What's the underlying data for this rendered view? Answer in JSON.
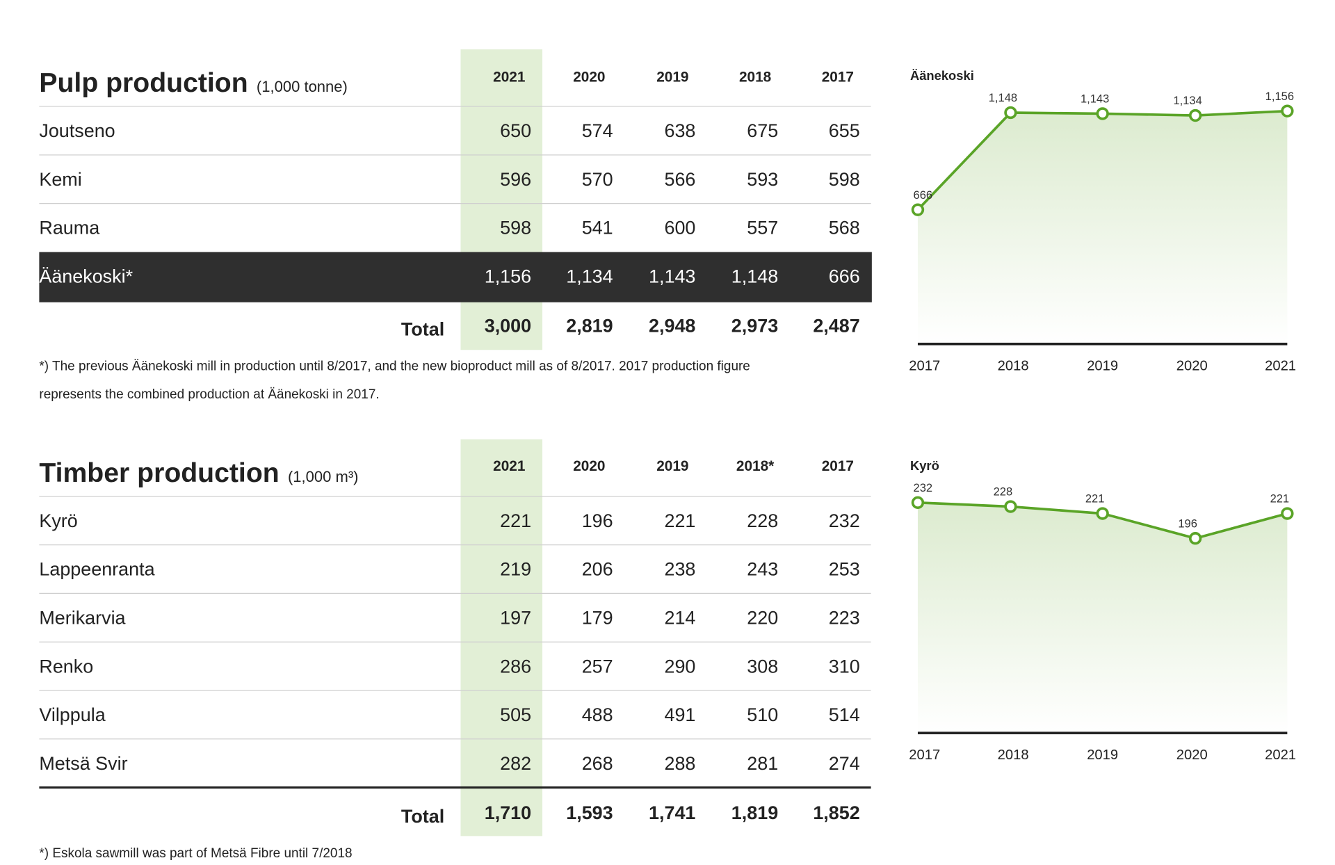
{
  "pulp": {
    "title": "Pulp production",
    "unit": "(1,000 tonne)",
    "columns": [
      "2021",
      "2020",
      "2019",
      "2018",
      "2017"
    ],
    "rows": [
      {
        "label": "Joutseno",
        "cells": [
          "650",
          "574",
          "638",
          "675",
          "655"
        ]
      },
      {
        "label": "Kemi",
        "cells": [
          "596",
          "570",
          "566",
          "593",
          "598"
        ]
      },
      {
        "label": "Rauma",
        "cells": [
          "598",
          "541",
          "600",
          "557",
          "568"
        ]
      },
      {
        "label": "Äänekoski*",
        "cells": [
          "1,156",
          "1,134",
          "1,143",
          "1,148",
          "666"
        ]
      }
    ],
    "total": {
      "label": "Total",
      "cells": [
        "3,000",
        "2,819",
        "2,948",
        "2,973",
        "2,487"
      ]
    },
    "footnote": [
      "*) The previous Äänekoski mill in production until 8/2017, and the new bioproduct mill as of 8/2017. 2017 production figure",
      "represents the combined production at Äänekoski in 2017."
    ],
    "chart": {
      "type": "line",
      "title": "Äänekoski",
      "categories": [
        "2017",
        "2018",
        "2019",
        "2020",
        "2021"
      ],
      "values": [
        666,
        1148,
        1143,
        1134,
        1156
      ],
      "value_labels": [
        "666",
        "1,148",
        "1,143",
        "1,134",
        "1,156"
      ],
      "ylim": [
        0,
        1200
      ],
      "color": "#5aa427"
    }
  },
  "timber": {
    "title": "Timber production",
    "unit": "(1,000 m³)",
    "columns": [
      "2021",
      "2020",
      "2019",
      "2018*",
      "2017"
    ],
    "rows": [
      {
        "label": "Kyrö",
        "cells": [
          "221",
          "196",
          "221",
          "228",
          "232"
        ]
      },
      {
        "label": "Lappeenranta",
        "cells": [
          "219",
          "206",
          "238",
          "243",
          "253"
        ]
      },
      {
        "label": "Merikarvia",
        "cells": [
          "197",
          "179",
          "214",
          "220",
          "223"
        ]
      },
      {
        "label": "Renko",
        "cells": [
          "286",
          "257",
          "290",
          "308",
          "310"
        ]
      },
      {
        "label": "Vilppula",
        "cells": [
          "505",
          "488",
          "491",
          "510",
          "514"
        ]
      },
      {
        "label": "Metsä Svir",
        "cells": [
          "282",
          "268",
          "288",
          "281",
          "274"
        ]
      }
    ],
    "total": {
      "label": "Total",
      "cells": [
        "1,710",
        "1,593",
        "1,741",
        "1,819",
        "1,852"
      ]
    },
    "footnote": [
      "*) Eskola sawmill was part of Metsä Fibre until 7/2018"
    ],
    "chart": {
      "type": "line",
      "title": "Kyrö",
      "categories": [
        "2017",
        "2018",
        "2019",
        "2020",
        "2021"
      ],
      "values": [
        232,
        228,
        221,
        196,
        221
      ],
      "value_labels": [
        "232",
        "228",
        "221",
        "196",
        "221"
      ],
      "ylim": [
        0,
        240
      ],
      "color": "#5aa427"
    }
  }
}
